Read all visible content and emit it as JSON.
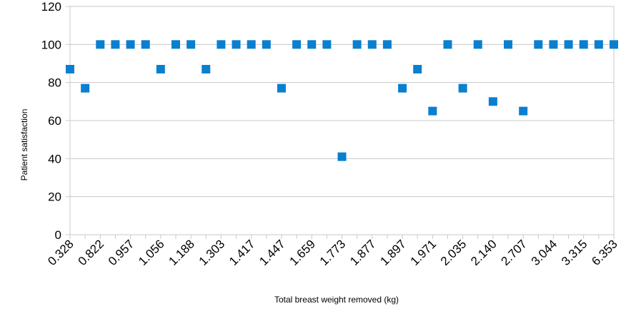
{
  "chart_data": {
    "type": "scatter",
    "title": "",
    "xlabel": "Total breast weight removed (kg)",
    "ylabel": "Patient satisfaction",
    "ylim": [
      0,
      120
    ],
    "yticks": [
      0,
      20,
      40,
      60,
      80,
      100,
      120
    ],
    "grid": true,
    "legend": "none",
    "marker_color": "#0a7fd0",
    "grid_color": "#c8c8c8",
    "x_tick_labels": [
      "0.328",
      "0.822",
      "0.957",
      "1.056",
      "1.188",
      "1.303",
      "1.417",
      "1.447",
      "1.659",
      "1.773",
      "1.877",
      "1.897",
      "1.971",
      "2.035",
      "2.140",
      "2.707",
      "3.044",
      "3.315",
      "6.353"
    ],
    "values": [
      87,
      77,
      100,
      100,
      100,
      100,
      87,
      100,
      100,
      87,
      100,
      100,
      100,
      100,
      77,
      100,
      100,
      100,
      41,
      100,
      100,
      100,
      77,
      87,
      65,
      100,
      77,
      100,
      70,
      100,
      65,
      100,
      100,
      100,
      100,
      100,
      100
    ]
  }
}
